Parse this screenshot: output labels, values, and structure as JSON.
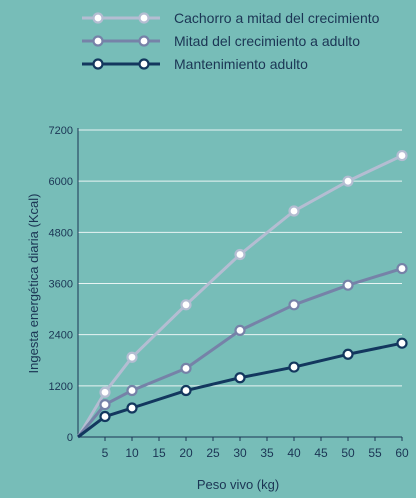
{
  "chart_data": {
    "type": "line",
    "title": "",
    "xlabel": "Peso vivo (kg)",
    "ylabel": "Ingesta energética diaria (Kcal)",
    "xlim": [
      0,
      60
    ],
    "ylim": [
      0,
      7200
    ],
    "x_ticks": [
      5,
      10,
      15,
      20,
      25,
      30,
      35,
      40,
      45,
      50,
      55,
      60
    ],
    "y_ticks": [
      0,
      1200,
      2400,
      3600,
      4800,
      6000,
      7200
    ],
    "grid": "horizontal",
    "legend_position": "top",
    "series": [
      {
        "name": "Cachorro a mitad del crecimiento",
        "color": "#b4bdd2",
        "marker_fill": "#ffffff",
        "x": [
          0,
          5,
          10,
          20,
          30,
          40,
          50,
          60
        ],
        "y": [
          0,
          1050,
          1870,
          3100,
          4280,
          5300,
          6000,
          6600
        ]
      },
      {
        "name": "Mitad del crecimiento a adulto",
        "color": "#7682a8",
        "marker_fill": "#ffffff",
        "x": [
          0,
          5,
          10,
          20,
          30,
          40,
          50,
          60
        ],
        "y": [
          0,
          760,
          1090,
          1610,
          2500,
          3100,
          3560,
          3950
        ]
      },
      {
        "name": "Mantenimiento adulto",
        "color": "#13375e",
        "marker_fill": "#ffffff",
        "x": [
          0,
          5,
          10,
          20,
          30,
          40,
          50,
          60
        ],
        "y": [
          0,
          480,
          680,
          1090,
          1390,
          1640,
          1940,
          2200
        ]
      }
    ]
  }
}
